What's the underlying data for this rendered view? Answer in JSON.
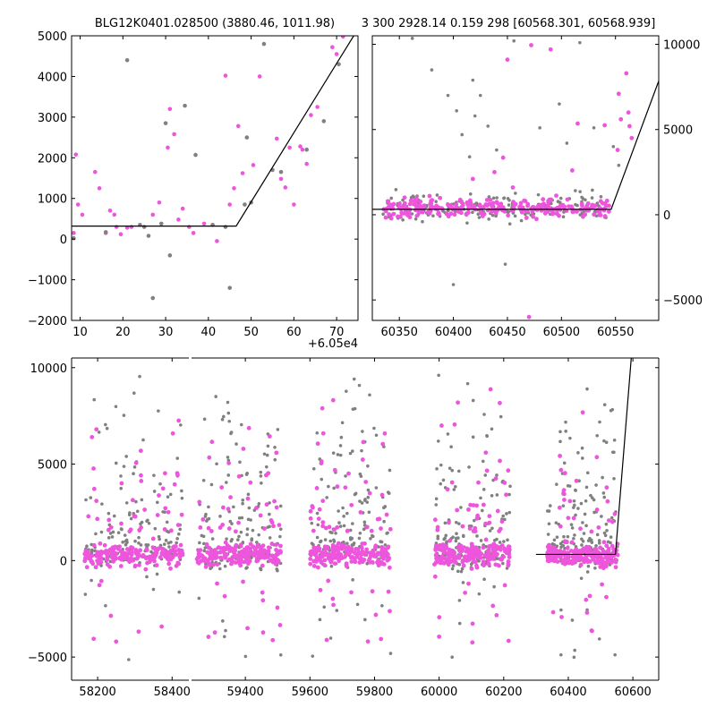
{
  "figure": {
    "title_left": "BLG12K0401.028500 (3880.46, 1011.98)",
    "title_right": "3 300 2928.14 0.159 298 [60568.301, 60568.939]",
    "offset_label": "+6.05e4"
  },
  "colors": {
    "gray_points": "#808080",
    "pink_points": "#ee55dd",
    "model_line": "#000000",
    "axes": "#000000"
  },
  "chart_data": [
    {
      "type": "scatter",
      "panel": "top-left zoom",
      "title": "BLG12K0401.028500 (3880.46, 1011.98)",
      "x_offset_label": "+6.05e4",
      "xlim": [
        8,
        75
      ],
      "ylim": [
        -2000,
        5000
      ],
      "xticks": [
        10,
        20,
        30,
        40,
        50,
        60,
        70
      ],
      "yticks": [
        -2000,
        -1000,
        0,
        1000,
        2000,
        3000,
        4000,
        5000
      ],
      "series": [
        {
          "color": "pink",
          "points": [
            [
              8.5,
              150
            ],
            [
              9,
              2080
            ],
            [
              9.5,
              850
            ],
            [
              10.5,
              600
            ],
            [
              13.5,
              1650
            ],
            [
              14.5,
              1250
            ],
            [
              16,
              150
            ],
            [
              17,
              700
            ],
            [
              18,
              600
            ],
            [
              18.5,
              300
            ],
            [
              19.5,
              120
            ],
            [
              21,
              280
            ],
            [
              22,
              300
            ],
            [
              27,
              600
            ],
            [
              28.5,
              900
            ],
            [
              30.5,
              2250
            ],
            [
              31,
              3200
            ],
            [
              32,
              2580
            ],
            [
              33,
              480
            ],
            [
              34,
              750
            ],
            [
              35.5,
              300
            ],
            [
              36.5,
              150
            ],
            [
              39,
              380
            ],
            [
              42,
              -50
            ],
            [
              44,
              4020
            ],
            [
              45,
              850
            ],
            [
              46,
              1250
            ],
            [
              47,
              2780
            ],
            [
              48,
              1620
            ],
            [
              50.5,
              1820
            ],
            [
              52,
              4000
            ],
            [
              56,
              2470
            ],
            [
              57,
              1480
            ],
            [
              58,
              1270
            ],
            [
              59,
              2250
            ],
            [
              60,
              850
            ],
            [
              61.5,
              2280
            ],
            [
              62,
              2200
            ],
            [
              63,
              1850
            ],
            [
              64,
              3050
            ],
            [
              65.5,
              3250
            ],
            [
              69,
              4720
            ],
            [
              70,
              4550
            ],
            [
              71.5,
              4980
            ]
          ]
        },
        {
          "color": "gray",
          "points": [
            [
              8.5,
              20
            ],
            [
              16,
              170
            ],
            [
              21,
              4400
            ],
            [
              24,
              350
            ],
            [
              25,
              300
            ],
            [
              26,
              80
            ],
            [
              27,
              -1450
            ],
            [
              29,
              380
            ],
            [
              30,
              2850
            ],
            [
              31,
              -400
            ],
            [
              34.5,
              3280
            ],
            [
              37,
              2070
            ],
            [
              41,
              350
            ],
            [
              44,
              300
            ],
            [
              45,
              -1200
            ],
            [
              48.5,
              850
            ],
            [
              49,
              2500
            ],
            [
              50,
              900
            ],
            [
              53,
              4800
            ],
            [
              55,
              1700
            ],
            [
              57,
              1650
            ],
            [
              63,
              2200
            ],
            [
              67,
              2900
            ],
            [
              70.5,
              4300
            ]
          ]
        }
      ],
      "model_line": [
        [
          8,
          320
        ],
        [
          46.5,
          320
        ],
        [
          74,
          5000
        ]
      ]
    },
    {
      "type": "scatter",
      "panel": "top-right",
      "title": "3 300 2928.14 0.159 298 [60568.301, 60568.939]",
      "xlim": [
        60325,
        60590
      ],
      "ylim": [
        -6200,
        10500
      ],
      "xticks": [
        60350,
        60400,
        60450,
        60500,
        60550
      ],
      "yticks": [
        -5000,
        0,
        5000,
        10000
      ],
      "yaxis_side": "right",
      "series": [
        {
          "color": "pink",
          "cluster_x": [
            60335,
            60545
          ],
          "cluster_y": [
            -400,
            1200
          ],
          "scatter_note": "dense baseline with outliers",
          "outliers": [
            [
              60378,
              1100
            ],
            [
              60402,
              400
            ],
            [
              60418,
              2100
            ],
            [
              60438,
              2500
            ],
            [
              60446,
              3350
            ],
            [
              60450,
              9100
            ],
            [
              60455,
              1600
            ],
            [
              60462,
              500
            ],
            [
              60470,
              -6000
            ],
            [
              60472,
              9950
            ],
            [
              60490,
              9700
            ],
            [
              60510,
              2600
            ],
            [
              60515,
              5350
            ],
            [
              60540,
              5250
            ],
            [
              60552,
              3800
            ],
            [
              60553,
              7100
            ],
            [
              60555,
              5600
            ],
            [
              60560,
              8300
            ],
            [
              60562,
              6000
            ],
            [
              60563,
              5200
            ],
            [
              60565,
              4500
            ]
          ]
        },
        {
          "color": "gray",
          "cluster_x": [
            60335,
            60545
          ],
          "cluster_y": [
            -600,
            1500
          ],
          "scatter_note": "dense baseline with outliers",
          "outliers": [
            [
              60362,
              10350
            ],
            [
              60380,
              8500
            ],
            [
              60395,
              7000
            ],
            [
              60400,
              -4100
            ],
            [
              60403,
              6100
            ],
            [
              60408,
              4700
            ],
            [
              60415,
              3400
            ],
            [
              60418,
              7900
            ],
            [
              60420,
              5800
            ],
            [
              60425,
              7000
            ],
            [
              60432,
              5200
            ],
            [
              60440,
              3800
            ],
            [
              60448,
              -2900
            ],
            [
              60456,
              10200
            ],
            [
              60480,
              5100
            ],
            [
              60498,
              6500
            ],
            [
              60505,
              4200
            ],
            [
              60517,
              10100
            ],
            [
              60530,
              5100
            ],
            [
              60548,
              4000
            ],
            [
              60553,
              2900
            ]
          ]
        }
      ],
      "model_line": [
        [
          60325,
          320
        ],
        [
          60546,
          320
        ],
        [
          60590,
          7850
        ]
      ]
    },
    {
      "type": "scatter",
      "panel": "bottom full light curve",
      "xlim_left": [
        58130,
        58445
      ],
      "xlim_right": [
        59225,
        60680
      ],
      "ylim": [
        -6200,
        10500
      ],
      "xticks": [
        58200,
        58400,
        59400,
        59600,
        59800,
        60000,
        60200,
        60400,
        60600
      ],
      "yticks": [
        -5000,
        0,
        5000,
        10000
      ],
      "seasons": [
        {
          "range": [
            58165,
            58430
          ]
        },
        {
          "range": [
            59250,
            59510
          ]
        },
        {
          "range": [
            59600,
            59850
          ]
        },
        {
          "range": [
            59985,
            60220
          ]
        },
        {
          "range": [
            60335,
            60555
          ]
        }
      ],
      "series": [
        {
          "name": "",
          "color": "pink"
        },
        {
          "name": "",
          "color": "gray"
        }
      ],
      "model_line": [
        [
          60300,
          320
        ],
        [
          60546,
          320
        ],
        [
          60595,
          10500
        ]
      ]
    }
  ]
}
